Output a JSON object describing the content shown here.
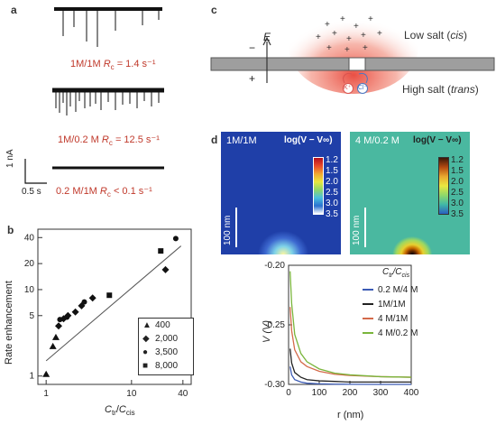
{
  "panel_a": {
    "label": "a",
    "traces": [
      {
        "condition": "1M/1M",
        "rate_text": "R",
        "rate_sub": "c",
        "rate_value": "= 1.4 s⁻¹"
      },
      {
        "condition": "1M/0.2 M",
        "rate_text": "R",
        "rate_sub": "c",
        "rate_value": "= 12.5 s⁻¹"
      },
      {
        "condition": "0.2 M/1M",
        "rate_text": "R",
        "rate_sub": "c",
        "rate_value": "< 0.1 s⁻¹"
      }
    ],
    "scale_current": "1 nA",
    "scale_time": "0.5 s",
    "colors": {
      "rate_text": "#c0392b",
      "trace": "#111111"
    }
  },
  "panel_b": {
    "label": "b",
    "chart_data": {
      "type": "scatter",
      "ylabel": "Rate enhancement",
      "xlabel": "C_tr/C_cis",
      "x_scale": "log",
      "y_scale": "log",
      "xlim": [
        0.8,
        50
      ],
      "ylim": [
        0.8,
        50
      ],
      "x_ticks": [
        "1",
        "10",
        "40"
      ],
      "y_ticks": [
        "1",
        "5",
        "10",
        "20",
        "40"
      ],
      "legend_position": "bottom-right",
      "series": [
        {
          "name": "400",
          "marker": "triangle",
          "points": [
            [
              1.0,
              1.05
            ],
            [
              1.2,
              2.2
            ],
            [
              1.3,
              2.8
            ]
          ]
        },
        {
          "name": "2,000",
          "marker": "diamond",
          "points": [
            [
              1.4,
              3.8
            ],
            [
              1.6,
              4.6
            ],
            [
              1.8,
              5.0
            ],
            [
              2.2,
              5.5
            ],
            [
              2.6,
              6.5
            ],
            [
              3.5,
              8.0
            ],
            [
              25,
              17.0
            ]
          ]
        },
        {
          "name": "3,500",
          "marker": "circle",
          "points": [
            [
              1.45,
              4.5
            ],
            [
              1.75,
              4.8
            ],
            [
              2.8,
              7.2
            ],
            [
              33,
              39.0
            ]
          ]
        },
        {
          "name": "8,000",
          "marker": "square",
          "points": [
            [
              5.5,
              8.6
            ],
            [
              22,
              28.0
            ]
          ]
        }
      ],
      "fit_line": [
        [
          1.0,
          1.5
        ],
        [
          38,
          32
        ]
      ]
    }
  },
  "panel_c": {
    "label": "c",
    "field_label": "E",
    "minus": "−",
    "plus": "+",
    "cis_label": "Low salt (cis)",
    "cis_main": "Low salt (",
    "cis_italic": "cis",
    "cis_close": ")",
    "trans_main": "High salt (",
    "trans_italic": "trans",
    "trans_close": ")",
    "k_ion": "K⁺",
    "cl_ion": "Cl⁻",
    "colors": {
      "glow": "#e8463a",
      "membrane": "#9e9e9e",
      "k_ion": "#d9534f",
      "cl_ion": "#4a78c2"
    }
  },
  "panel_d": {
    "label": "d",
    "maps": [
      {
        "condition": "1M/1M",
        "colorbar_label": "log(V − V∞)",
        "ticks": [
          "1.2",
          "1.5",
          "2.0",
          "2.5",
          "3.0",
          "3.5"
        ],
        "scale_bar": "100 nm",
        "background": "#1f3fa8"
      },
      {
        "condition": "4 M/0.2 M",
        "colorbar_label": "log(V − V∞)",
        "ticks": [
          "1.2",
          "1.5",
          "2.0",
          "2.5",
          "3.0",
          "3.5"
        ],
        "scale_bar": "100 nm",
        "background": "#3fb89a"
      }
    ],
    "chart_data": {
      "type": "line",
      "xlabel": "r (nm)",
      "ylabel": "V (V)",
      "xlim": [
        0,
        400
      ],
      "ylim": [
        -0.3,
        -0.2
      ],
      "x_ticks": [
        "0",
        "100",
        "200",
        "300",
        "400"
      ],
      "y_ticks": [
        "-0.20",
        "-0.25",
        "-0.30"
      ],
      "legend_title": "C_tr/C_cis",
      "series": [
        {
          "name": "0.2 M/4 M",
          "color": "#3b5bb5",
          "x": [
            5,
            10,
            20,
            40,
            60,
            100,
            150,
            200,
            300,
            400
          ],
          "y": [
            -0.285,
            -0.292,
            -0.296,
            -0.298,
            -0.299,
            -0.2995,
            -0.2998,
            -0.2999,
            -0.3,
            -0.3
          ]
        },
        {
          "name": "1M/1M",
          "color": "#222222",
          "x": [
            5,
            10,
            20,
            40,
            60,
            100,
            150,
            200,
            300,
            400
          ],
          "y": [
            -0.27,
            -0.282,
            -0.29,
            -0.294,
            -0.296,
            -0.297,
            -0.2975,
            -0.298,
            -0.298,
            -0.298
          ]
        },
        {
          "name": "4 M/1M",
          "color": "#d46a4a",
          "x": [
            5,
            10,
            20,
            40,
            60,
            100,
            150,
            200,
            300,
            400
          ],
          "y": [
            -0.235,
            -0.255,
            -0.271,
            -0.281,
            -0.285,
            -0.289,
            -0.2915,
            -0.2925,
            -0.2935,
            -0.294
          ]
        },
        {
          "name": "4 M/0.2 M",
          "color": "#7ab53b",
          "x": [
            5,
            10,
            20,
            40,
            60,
            100,
            150,
            200,
            300,
            400
          ],
          "y": [
            -0.205,
            -0.232,
            -0.258,
            -0.274,
            -0.281,
            -0.287,
            -0.2905,
            -0.292,
            -0.2935,
            -0.294
          ]
        }
      ]
    }
  }
}
